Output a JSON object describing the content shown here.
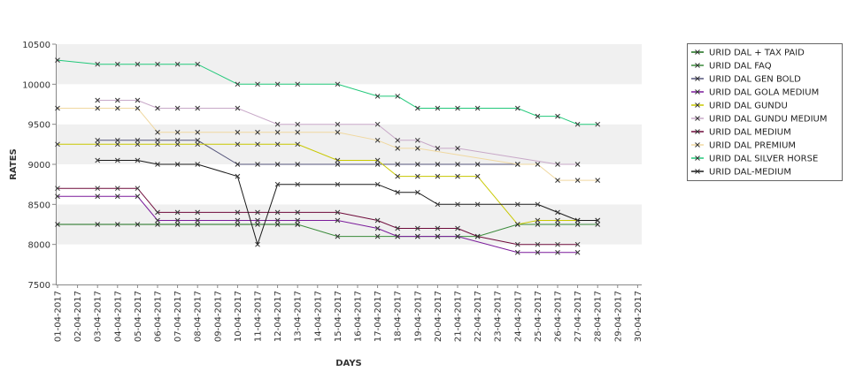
{
  "chart_data": {
    "type": "line",
    "title": "",
    "xlabel": "DAYS",
    "ylabel": "RATES",
    "ylim": [
      7500,
      10500
    ],
    "yticks": [
      "7500",
      "8000",
      "8500",
      "9000",
      "9500",
      "10000",
      "10500"
    ],
    "x_date_range": [
      "2017-04-01",
      "2017-04-30"
    ],
    "grid": "alternating horizontal bands",
    "legend_position": "right",
    "x": [
      "01-04-2017",
      "02-04-2017",
      "03-04-2017",
      "04-04-2017",
      "05-04-2017",
      "06-04-2017",
      "07-04-2017",
      "08-04-2017",
      "09-04-2017",
      "10-04-2017",
      "11-04-2017",
      "12-04-2017",
      "13-04-2017",
      "14-04-2017",
      "15-04-2017",
      "16-04-2017",
      "17-04-2017",
      "18-04-2017",
      "19-04-2017",
      "20-04-2017",
      "21-04-2017",
      "22-04-2017",
      "23-04-2017",
      "24-04-2017",
      "25-04-2017",
      "26-04-2017",
      "27-04-2017",
      "28-04-2017",
      "29-04-2017",
      "30-04-2017"
    ],
    "series": [
      {
        "name": "URID DAL + TAX PAID",
        "color": "#1a6e1a",
        "points": [
          [
            "01-04-2017",
            8250
          ],
          [
            "03-04-2017",
            8250
          ],
          [
            "04-04-2017",
            8250
          ],
          [
            "05-04-2017",
            8250
          ],
          [
            "06-04-2017",
            8250
          ],
          [
            "07-04-2017",
            8250
          ],
          [
            "08-04-2017",
            8250
          ],
          [
            "10-04-2017",
            8250
          ],
          [
            "11-04-2017",
            8250
          ],
          [
            "12-04-2017",
            8250
          ],
          [
            "13-04-2017",
            8250
          ]
        ]
      },
      {
        "name": "URID DAL FAQ",
        "color": "#3a8a3a",
        "points": [
          [
            "13-04-2017",
            8250
          ],
          [
            "15-04-2017",
            8100
          ],
          [
            "17-04-2017",
            8100
          ],
          [
            "18-04-2017",
            8100
          ],
          [
            "19-04-2017",
            8100
          ],
          [
            "20-04-2017",
            8100
          ],
          [
            "21-04-2017",
            8100
          ],
          [
            "22-04-2017",
            8100
          ],
          [
            "24-04-2017",
            8250
          ],
          [
            "25-04-2017",
            8250
          ],
          [
            "26-04-2017",
            8250
          ],
          [
            "27-04-2017",
            8250
          ],
          [
            "28-04-2017",
            8250
          ]
        ]
      },
      {
        "name": "URID DAL GEN BOLD",
        "color": "#55557a",
        "points": [
          [
            "03-04-2017",
            9300
          ],
          [
            "04-04-2017",
            9300
          ],
          [
            "05-04-2017",
            9300
          ],
          [
            "06-04-2017",
            9300
          ],
          [
            "07-04-2017",
            9300
          ],
          [
            "08-04-2017",
            9300
          ],
          [
            "10-04-2017",
            9000
          ],
          [
            "11-04-2017",
            9000
          ],
          [
            "12-04-2017",
            9000
          ],
          [
            "13-04-2017",
            9000
          ],
          [
            "15-04-2017",
            9000
          ],
          [
            "17-04-2017",
            9000
          ],
          [
            "18-04-2017",
            9000
          ],
          [
            "19-04-2017",
            9000
          ],
          [
            "20-04-2017",
            9000
          ],
          [
            "21-04-2017",
            9000
          ],
          [
            "22-04-2017",
            9000
          ],
          [
            "24-04-2017",
            9000
          ]
        ]
      },
      {
        "name": "URID DAL GOLA MEDIUM",
        "color": "#7a1a9a",
        "points": [
          [
            "01-04-2017",
            8600
          ],
          [
            "03-04-2017",
            8600
          ],
          [
            "04-04-2017",
            8600
          ],
          [
            "05-04-2017",
            8600
          ],
          [
            "06-04-2017",
            8300
          ],
          [
            "07-04-2017",
            8300
          ],
          [
            "08-04-2017",
            8300
          ],
          [
            "10-04-2017",
            8300
          ],
          [
            "11-04-2017",
            8300
          ],
          [
            "12-04-2017",
            8300
          ],
          [
            "13-04-2017",
            8300
          ],
          [
            "15-04-2017",
            8300
          ],
          [
            "17-04-2017",
            8200
          ],
          [
            "18-04-2017",
            8100
          ],
          [
            "19-04-2017",
            8100
          ],
          [
            "20-04-2017",
            8100
          ],
          [
            "21-04-2017",
            8100
          ],
          [
            "24-04-2017",
            7900
          ],
          [
            "25-04-2017",
            7900
          ],
          [
            "26-04-2017",
            7900
          ],
          [
            "27-04-2017",
            7900
          ]
        ]
      },
      {
        "name": "URID DAL GUNDU",
        "color": "#c8c800",
        "points": [
          [
            "01-04-2017",
            9250
          ],
          [
            "03-04-2017",
            9250
          ],
          [
            "04-04-2017",
            9250
          ],
          [
            "05-04-2017",
            9250
          ],
          [
            "06-04-2017",
            9250
          ],
          [
            "07-04-2017",
            9250
          ],
          [
            "08-04-2017",
            9250
          ],
          [
            "10-04-2017",
            9250
          ],
          [
            "11-04-2017",
            9250
          ],
          [
            "12-04-2017",
            9250
          ],
          [
            "13-04-2017",
            9250
          ],
          [
            "15-04-2017",
            9050
          ],
          [
            "17-04-2017",
            9050
          ],
          [
            "18-04-2017",
            8850
          ],
          [
            "19-04-2017",
            8850
          ],
          [
            "20-04-2017",
            8850
          ],
          [
            "21-04-2017",
            8850
          ],
          [
            "22-04-2017",
            8850
          ],
          [
            "24-04-2017",
            8250
          ],
          [
            "25-04-2017",
            8300
          ],
          [
            "26-04-2017",
            8300
          ],
          [
            "27-04-2017",
            8300
          ],
          [
            "28-04-2017",
            8300
          ]
        ]
      },
      {
        "name": "URID DAL GUNDU MEDIUM",
        "color": "#c8a8c8",
        "points": [
          [
            "03-04-2017",
            9800
          ],
          [
            "04-04-2017",
            9800
          ],
          [
            "05-04-2017",
            9800
          ],
          [
            "06-04-2017",
            9700
          ],
          [
            "07-04-2017",
            9700
          ],
          [
            "08-04-2017",
            9700
          ],
          [
            "10-04-2017",
            9700
          ],
          [
            "12-04-2017",
            9500
          ],
          [
            "13-04-2017",
            9500
          ],
          [
            "15-04-2017",
            9500
          ],
          [
            "17-04-2017",
            9500
          ],
          [
            "18-04-2017",
            9300
          ],
          [
            "19-04-2017",
            9300
          ],
          [
            "20-04-2017",
            9200
          ],
          [
            "21-04-2017",
            9200
          ],
          [
            "26-04-2017",
            9000
          ],
          [
            "27-04-2017",
            9000
          ]
        ]
      },
      {
        "name": "URID DAL MEDIUM",
        "color": "#6e0a3a",
        "points": [
          [
            "01-04-2017",
            8700
          ],
          [
            "03-04-2017",
            8700
          ],
          [
            "04-04-2017",
            8700
          ],
          [
            "05-04-2017",
            8700
          ],
          [
            "06-04-2017",
            8400
          ],
          [
            "07-04-2017",
            8400
          ],
          [
            "08-04-2017",
            8400
          ],
          [
            "10-04-2017",
            8400
          ],
          [
            "11-04-2017",
            8400
          ],
          [
            "12-04-2017",
            8400
          ],
          [
            "13-04-2017",
            8400
          ],
          [
            "15-04-2017",
            8400
          ],
          [
            "17-04-2017",
            8300
          ],
          [
            "18-04-2017",
            8200
          ],
          [
            "19-04-2017",
            8200
          ],
          [
            "20-04-2017",
            8200
          ],
          [
            "21-04-2017",
            8200
          ],
          [
            "22-04-2017",
            8100
          ],
          [
            "24-04-2017",
            8000
          ],
          [
            "25-04-2017",
            8000
          ],
          [
            "26-04-2017",
            8000
          ],
          [
            "27-04-2017",
            8000
          ]
        ]
      },
      {
        "name": "URID DAL PREMIUM",
        "color": "#f0d8a0",
        "points": [
          [
            "01-04-2017",
            9700
          ],
          [
            "03-04-2017",
            9700
          ],
          [
            "04-04-2017",
            9700
          ],
          [
            "05-04-2017",
            9700
          ],
          [
            "06-04-2017",
            9400
          ],
          [
            "07-04-2017",
            9400
          ],
          [
            "08-04-2017",
            9400
          ],
          [
            "10-04-2017",
            9400
          ],
          [
            "11-04-2017",
            9400
          ],
          [
            "12-04-2017",
            9400
          ],
          [
            "13-04-2017",
            9400
          ],
          [
            "15-04-2017",
            9400
          ],
          [
            "17-04-2017",
            9300
          ],
          [
            "18-04-2017",
            9200
          ],
          [
            "19-04-2017",
            9200
          ],
          [
            "24-04-2017",
            9000
          ],
          [
            "25-04-2017",
            9000
          ],
          [
            "26-04-2017",
            8800
          ],
          [
            "27-04-2017",
            8800
          ],
          [
            "28-04-2017",
            8800
          ]
        ]
      },
      {
        "name": "URID DAL SILVER HORSE",
        "color": "#22c87a",
        "points": [
          [
            "01-04-2017",
            10300
          ],
          [
            "03-04-2017",
            10250
          ],
          [
            "04-04-2017",
            10250
          ],
          [
            "05-04-2017",
            10250
          ],
          [
            "06-04-2017",
            10250
          ],
          [
            "07-04-2017",
            10250
          ],
          [
            "08-04-2017",
            10250
          ],
          [
            "10-04-2017",
            10000
          ],
          [
            "11-04-2017",
            10000
          ],
          [
            "12-04-2017",
            10000
          ],
          [
            "13-04-2017",
            10000
          ],
          [
            "15-04-2017",
            10000
          ],
          [
            "17-04-2017",
            9850
          ],
          [
            "18-04-2017",
            9850
          ],
          [
            "19-04-2017",
            9700
          ],
          [
            "20-04-2017",
            9700
          ],
          [
            "21-04-2017",
            9700
          ],
          [
            "22-04-2017",
            9700
          ],
          [
            "24-04-2017",
            9700
          ],
          [
            "25-04-2017",
            9600
          ],
          [
            "26-04-2017",
            9600
          ],
          [
            "27-04-2017",
            9500
          ],
          [
            "28-04-2017",
            9500
          ]
        ]
      },
      {
        "name": "URID DAL-MEDIUM",
        "color": "#1a1a1a",
        "points": [
          [
            "03-04-2017",
            9050
          ],
          [
            "04-04-2017",
            9050
          ],
          [
            "05-04-2017",
            9050
          ],
          [
            "06-04-2017",
            9000
          ],
          [
            "07-04-2017",
            9000
          ],
          [
            "08-04-2017",
            9000
          ],
          [
            "10-04-2017",
            8850
          ],
          [
            "11-04-2017",
            8000
          ],
          [
            "12-04-2017",
            8750
          ],
          [
            "13-04-2017",
            8750
          ],
          [
            "15-04-2017",
            8750
          ],
          [
            "17-04-2017",
            8750
          ],
          [
            "18-04-2017",
            8650
          ],
          [
            "19-04-2017",
            8650
          ],
          [
            "20-04-2017",
            8500
          ],
          [
            "21-04-2017",
            8500
          ],
          [
            "22-04-2017",
            8500
          ],
          [
            "24-04-2017",
            8500
          ],
          [
            "25-04-2017",
            8500
          ],
          [
            "26-04-2017",
            8400
          ],
          [
            "27-04-2017",
            8300
          ],
          [
            "28-04-2017",
            8300
          ]
        ]
      }
    ]
  }
}
